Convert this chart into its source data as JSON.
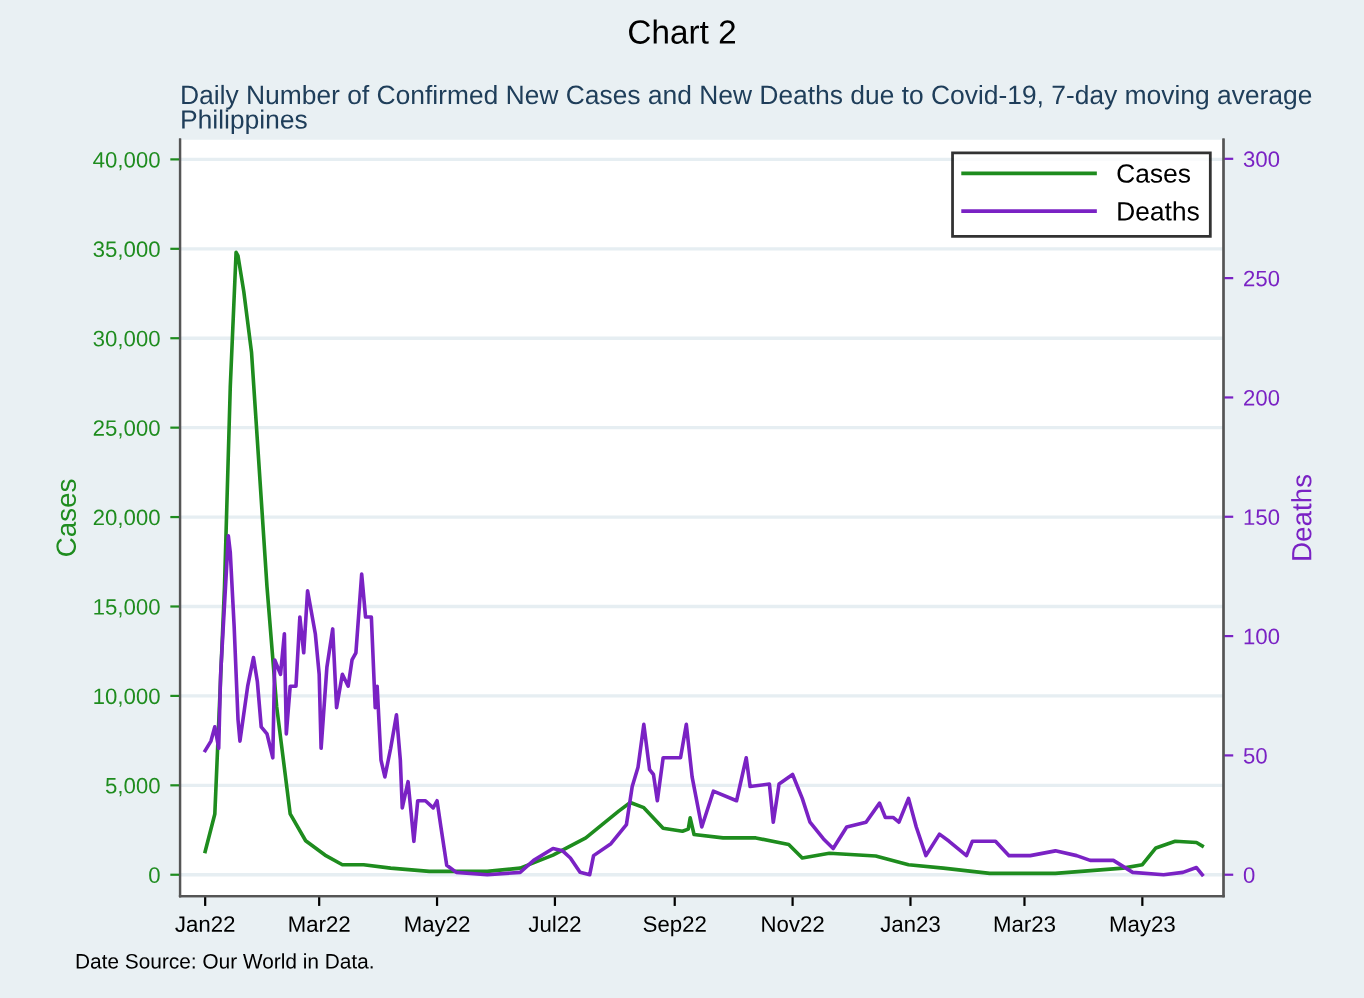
{
  "chart_data": {
    "type": "line",
    "title": "Chart 2",
    "subtitle": "Daily Number of Confirmed New Cases and New Deaths due to Covid-19, 7-day moving average\nPhilippines",
    "ylabel": "Cases",
    "y2label": "Deaths",
    "annotations": [
      "Date Source: Our World in Data."
    ],
    "xlim": [
      "2021-12-19",
      "2023-06-12"
    ],
    "xticks": [
      {
        "value": "2022-01-01",
        "label": "Jan22"
      },
      {
        "value": "2022-03-01",
        "label": "Mar22"
      },
      {
        "value": "2022-05-01",
        "label": "May22"
      },
      {
        "value": "2022-07-01",
        "label": "Jul22"
      },
      {
        "value": "2022-09-01",
        "label": "Sep22"
      },
      {
        "value": "2022-11-01",
        "label": "Nov22"
      },
      {
        "value": "2023-01-01",
        "label": "Jan23"
      },
      {
        "value": "2023-03-01",
        "label": "Mar23"
      },
      {
        "value": "2023-05-01",
        "label": "May23"
      }
    ],
    "ylim": [
      -1200,
      41100
    ],
    "yticks": [
      0,
      {
        "value": 5000,
        "label": "5,000"
      },
      {
        "value": 10000,
        "label": "10,000"
      },
      {
        "value": 15000,
        "label": "15,000"
      },
      {
        "value": 20000,
        "label": "20,000"
      },
      {
        "value": 25000,
        "label": "25,000"
      },
      {
        "value": 30000,
        "label": "30,000"
      },
      {
        "value": 35000,
        "label": "35,000"
      },
      {
        "value": 40000,
        "label": "40,000"
      }
    ],
    "y2lim": [
      -9,
      308
    ],
    "y2ticks": [
      0,
      50,
      100,
      150,
      200,
      250,
      300
    ],
    "grid": "y",
    "legend": "top right",
    "marker": "none",
    "line_style": "solid",
    "series": [
      {
        "name": "Cases",
        "color": "#1e8c1e",
        "x": [
          "2022-01-01",
          "2022-01-06",
          "2022-01-11",
          "2022-01-14",
          "2022-01-17",
          "2022-01-18",
          "2022-01-21",
          "2022-01-25",
          "2022-01-28",
          "2022-02-02",
          "2022-02-07",
          "2022-02-14",
          "2022-02-22",
          "2022-03-04",
          "2022-03-13",
          "2022-03-24",
          "2022-04-07",
          "2022-04-27",
          "2022-05-27",
          "2022-06-13",
          "2022-06-30",
          "2022-07-17",
          "2022-08-03",
          "2022-08-09",
          "2022-08-16",
          "2022-08-26",
          "2022-09-05",
          "2022-09-08",
          "2022-09-09",
          "2022-09-11",
          "2022-09-26",
          "2022-10-13",
          "2022-10-30",
          "2022-11-06",
          "2022-11-20",
          "2022-12-14",
          "2022-12-31",
          "2023-01-18",
          "2023-02-11",
          "2023-03-17",
          "2023-04-21",
          "2023-05-01",
          "2023-05-08",
          "2023-05-18",
          "2023-05-29",
          "2023-06-01"
        ],
        "values": [
          1300,
          3400,
          16100,
          27300,
          34800,
          34600,
          32600,
          29200,
          24300,
          16100,
          9400,
          3400,
          1900,
          1100,
          560,
          560,
          370,
          190,
          190,
          370,
          1100,
          2060,
          3560,
          4040,
          3750,
          2600,
          2430,
          2550,
          3180,
          2250,
          2060,
          2060,
          1690,
          940,
          1200,
          1050,
          560,
          370,
          75,
          75,
          370,
          560,
          1500,
          1870,
          1800,
          1610
        ]
      },
      {
        "name": "Deaths",
        "color": "#7a22c4",
        "axis": "y2",
        "x": [
          "2022-01-01",
          "2022-01-04",
          "2022-01-06",
          "2022-01-08",
          "2022-01-09",
          "2022-01-13",
          "2022-01-14",
          "2022-01-16",
          "2022-01-18",
          "2022-01-19",
          "2022-01-23",
          "2022-01-26",
          "2022-01-28",
          "2022-01-30",
          "2022-02-02",
          "2022-02-05",
          "2022-02-06",
          "2022-02-09",
          "2022-02-11",
          "2022-02-12",
          "2022-02-14",
          "2022-02-17",
          "2022-02-19",
          "2022-02-21",
          "2022-02-23",
          "2022-02-27",
          "2022-03-01",
          "2022-03-02",
          "2022-03-05",
          "2022-03-08",
          "2022-03-10",
          "2022-03-13",
          "2022-03-16",
          "2022-03-18",
          "2022-03-20",
          "2022-03-23",
          "2022-03-25",
          "2022-03-28",
          "2022-03-30",
          "2022-03-31",
          "2022-04-02",
          "2022-04-04",
          "2022-04-07",
          "2022-04-10",
          "2022-04-12",
          "2022-04-13",
          "2022-04-16",
          "2022-04-19",
          "2022-04-21",
          "2022-04-25",
          "2022-04-29",
          "2022-05-01",
          "2022-05-03",
          "2022-05-06",
          "2022-05-11",
          "2022-05-27",
          "2022-06-13",
          "2022-06-20",
          "2022-06-30",
          "2022-07-05",
          "2022-07-09",
          "2022-07-14",
          "2022-07-19",
          "2022-07-21",
          "2022-07-30",
          "2022-08-07",
          "2022-08-10",
          "2022-08-13",
          "2022-08-16",
          "2022-08-19",
          "2022-08-21",
          "2022-08-23",
          "2022-08-26",
          "2022-09-04",
          "2022-09-07",
          "2022-09-10",
          "2022-09-15",
          "2022-09-21",
          "2022-10-03",
          "2022-10-08",
          "2022-10-10",
          "2022-10-20",
          "2022-10-22",
          "2022-10-25",
          "2022-11-01",
          "2022-11-06",
          "2022-11-10",
          "2022-11-17",
          "2022-11-22",
          "2022-11-29",
          "2022-12-09",
          "2022-12-16",
          "2022-12-19",
          "2022-12-23",
          "2022-12-26",
          "2022-12-31",
          "2023-01-04",
          "2023-01-09",
          "2023-01-16",
          "2023-01-21",
          "2023-01-30",
          "2023-02-02",
          "2023-02-14",
          "2023-02-21",
          "2023-03-04",
          "2023-03-17",
          "2023-03-28",
          "2023-04-04",
          "2023-04-16",
          "2023-04-26",
          "2023-05-12",
          "2023-05-22",
          "2023-05-29",
          "2023-06-01"
        ],
        "values": [
          52,
          56,
          62,
          53,
          84,
          142,
          135,
          104,
          65,
          56,
          79,
          91,
          81,
          62,
          59,
          49,
          90,
          84,
          101,
          59,
          79,
          79,
          108,
          93,
          119,
          101,
          84,
          53,
          87,
          103,
          70,
          84,
          79,
          90,
          93,
          126,
          108,
          108,
          70,
          79,
          48,
          41,
          53,
          67,
          48,
          28,
          39,
          14,
          31,
          31,
          28,
          31,
          20,
          4,
          1,
          0,
          1,
          6,
          11,
          10,
          7,
          1,
          0,
          8,
          13,
          21,
          37,
          45,
          63,
          44,
          42,
          31,
          49,
          49,
          63,
          41,
          20,
          35,
          31,
          49,
          37,
          38,
          22,
          38,
          42,
          32,
          22,
          15,
          11,
          20,
          22,
          30,
          24,
          24,
          22,
          32,
          20,
          8,
          17,
          14,
          8,
          14,
          14,
          8,
          8,
          10,
          8,
          6,
          6,
          1,
          0,
          1,
          3,
          0
        ]
      }
    ]
  }
}
